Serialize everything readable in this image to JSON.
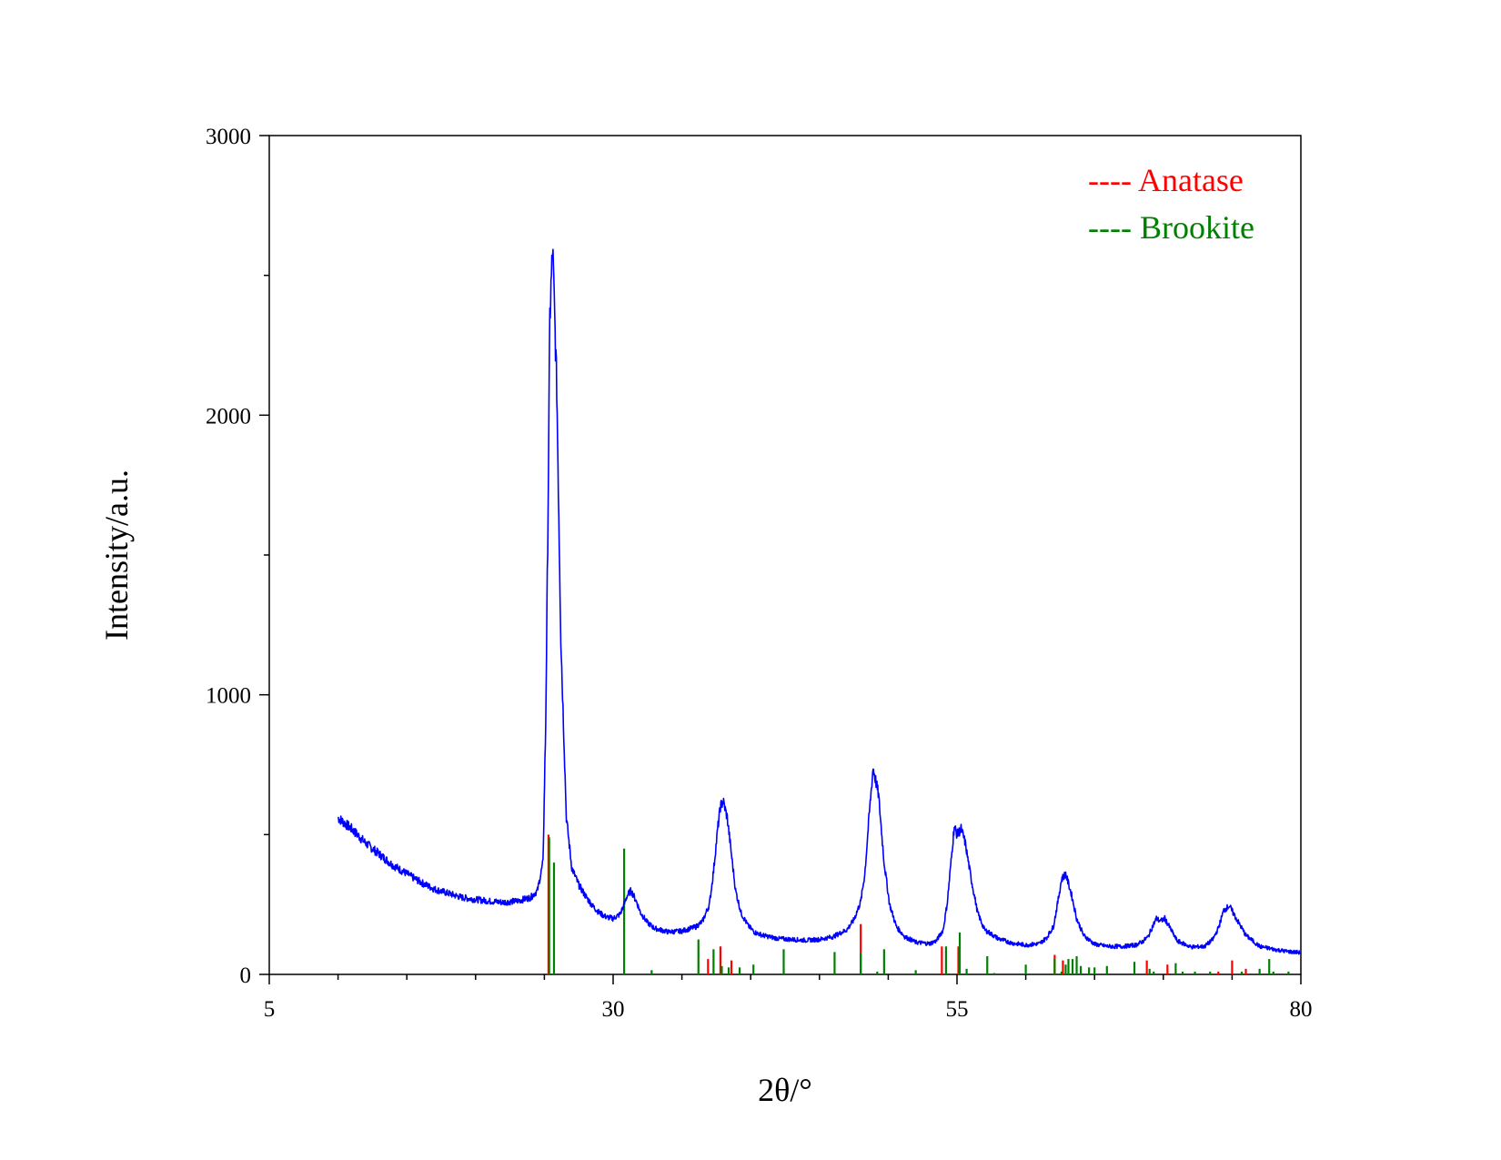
{
  "chart_data": {
    "type": "line",
    "xlabel": "2θ/°",
    "ylabel": "Intensity/a.u.",
    "xlim": [
      5,
      80
    ],
    "ylim": [
      0,
      3000
    ],
    "xticks": [
      5,
      30,
      55,
      80
    ],
    "xminor_step": 5,
    "yticks": [
      0,
      1000,
      2000,
      3000
    ],
    "yminor_step": 500,
    "grid": false,
    "legend_position": "top-right",
    "colors": {
      "measured": "#0000FF",
      "anatase": "#FF0000",
      "brookite": "#008000"
    },
    "legend": [
      {
        "name": "Anatase",
        "marker_text": "----",
        "color": "#FF0000"
      },
      {
        "name": "Brookite",
        "marker_text": "----",
        "color": "#008000"
      }
    ],
    "series": [
      {
        "type": "line",
        "color": "#0000FF",
        "x": [
          10.0,
          10.5,
          11.0,
          12.0,
          13.0,
          14.0,
          15.0,
          16.0,
          17.0,
          18.0,
          19.0,
          20.0,
          21.0,
          22.0,
          23.0,
          24.0,
          24.5,
          24.9,
          25.1,
          25.3,
          25.4,
          25.6,
          25.9,
          26.2,
          26.6,
          27.0,
          27.5,
          28.0,
          28.5,
          29.0,
          29.5,
          30.0,
          30.5,
          30.8,
          31.0,
          31.3,
          31.7,
          32.0,
          32.5,
          33.0,
          34.0,
          35.0,
          36.0,
          36.5,
          37.0,
          37.3,
          37.6,
          37.8,
          38.0,
          38.3,
          38.6,
          38.9,
          39.3,
          39.8,
          40.3,
          41.0,
          42.0,
          43.0,
          44.0,
          45.0,
          46.0,
          47.0,
          47.5,
          48.0,
          48.3,
          48.6,
          48.9,
          49.3,
          49.7,
          50.1,
          50.6,
          51.2,
          52.0,
          53.0,
          53.5,
          54.0,
          54.3,
          54.6,
          54.8,
          55.0,
          55.3,
          55.6,
          56.0,
          56.5,
          57.0,
          58.0,
          59.0,
          60.0,
          61.0,
          61.5,
          62.0,
          62.3,
          62.6,
          62.9,
          63.3,
          63.7,
          64.2,
          65.0,
          66.0,
          67.0,
          68.0,
          68.5,
          68.9,
          69.2,
          69.5,
          69.8,
          70.1,
          70.5,
          71.0,
          72.0,
          73.0,
          73.6,
          74.0,
          74.4,
          74.8,
          75.3,
          76.0,
          77.0,
          78.0,
          79.0,
          80.0
        ],
        "y": [
          560,
          540,
          520,
          470,
          430,
          390,
          360,
          330,
          305,
          290,
          275,
          268,
          262,
          258,
          262,
          275,
          300,
          400,
          900,
          1800,
          2350,
          2600,
          2100,
          1200,
          560,
          380,
          320,
          280,
          245,
          220,
          205,
          200,
          215,
          250,
          280,
          300,
          260,
          220,
          185,
          165,
          152,
          155,
          170,
          190,
          250,
          370,
          520,
          600,
          620,
          560,
          430,
          300,
          220,
          175,
          150,
          138,
          128,
          125,
          122,
          125,
          135,
          160,
          195,
          260,
          360,
          560,
          740,
          640,
          400,
          250,
          170,
          135,
          115,
          110,
          120,
          160,
          260,
          420,
          530,
          500,
          520,
          470,
          350,
          220,
          160,
          128,
          112,
          105,
          110,
          130,
          170,
          250,
          340,
          360,
          290,
          200,
          140,
          108,
          100,
          100,
          105,
          118,
          135,
          170,
          200,
          190,
          200,
          165,
          120,
          98,
          100,
          125,
          165,
          230,
          245,
          200,
          140,
          100,
          90,
          82,
          78
        ]
      },
      {
        "name": "Anatase",
        "type": "stick",
        "color": "#FF0000",
        "x": [
          25.3,
          36.9,
          37.8,
          38.6,
          48.0,
          53.9,
          55.1,
          62.1,
          62.7,
          68.8,
          70.3,
          74.0,
          75.0,
          76.0
        ],
        "y": [
          500,
          55,
          100,
          50,
          180,
          100,
          100,
          70,
          50,
          50,
          35,
          10,
          50,
          20
        ]
      },
      {
        "name": "Brookite",
        "type": "stick",
        "color": "#008000",
        "x": [
          25.35,
          25.7,
          30.8,
          32.8,
          36.2,
          37.3,
          37.9,
          38.4,
          39.2,
          40.2,
          42.4,
          46.1,
          48.0,
          49.2,
          49.7,
          52.0,
          54.2,
          55.2,
          55.7,
          57.2,
          57.7,
          60.0,
          62.1,
          62.6,
          62.9,
          63.1,
          63.4,
          63.7,
          64.0,
          64.6,
          65.0,
          65.9,
          67.9,
          69.0,
          69.3,
          70.9,
          71.4,
          72.3,
          73.4,
          75.7,
          77.0,
          77.7,
          78.0,
          79.1
        ],
        "y": [
          490,
          400,
          450,
          15,
          125,
          90,
          30,
          25,
          25,
          35,
          90,
          80,
          75,
          10,
          90,
          15,
          100,
          150,
          20,
          65,
          5,
          35,
          55,
          10,
          35,
          55,
          55,
          65,
          30,
          25,
          25,
          30,
          45,
          20,
          10,
          40,
          10,
          10,
          10,
          10,
          20,
          55,
          10,
          10
        ]
      }
    ]
  }
}
